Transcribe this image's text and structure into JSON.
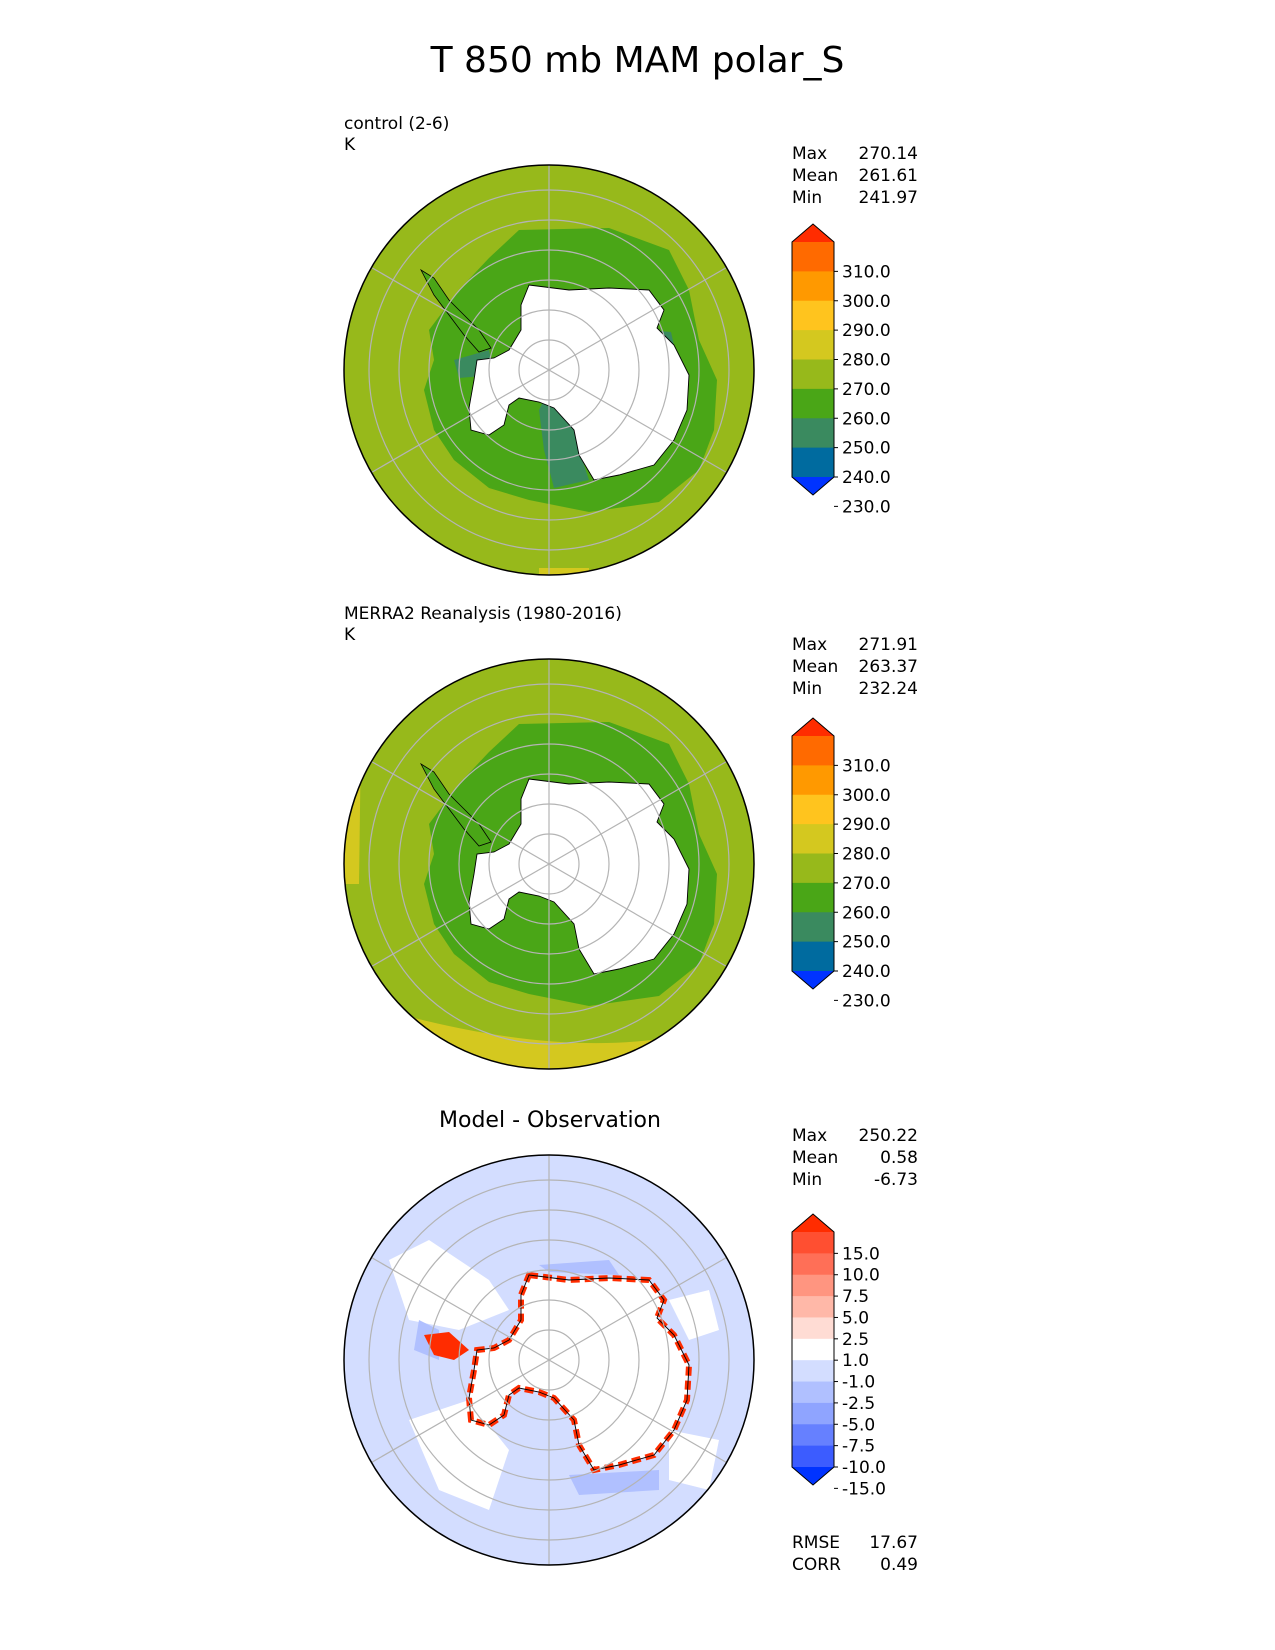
{
  "title": "T 850 mb MAM polar_S",
  "chart_data": [
    {
      "type": "heatmap",
      "projection": "south polar stereographic",
      "subtitle": "control (2-6)",
      "units": "K",
      "stats": [
        {
          "label": "Max",
          "value": "270.14"
        },
        {
          "label": "Mean",
          "value": "261.61"
        },
        {
          "label": "Min",
          "value": "241.97"
        }
      ],
      "colorbar": {
        "ticks": [
          "310.0",
          "300.0",
          "290.0",
          "280.0",
          "270.0",
          "260.0",
          "250.0",
          "240.0",
          "230.0"
        ],
        "colors": [
          "#ff2c00",
          "#ff6a00",
          "#ff9900",
          "#ffc41e",
          "#d4c81f",
          "#97b91b",
          "#4aa617",
          "#3a8a5f",
          "#006b9f",
          "#0033ff"
        ],
        "extend": "both"
      }
    },
    {
      "type": "heatmap",
      "projection": "south polar stereographic",
      "subtitle": "MERRA2 Reanalysis (1980-2016)",
      "units": "K",
      "stats": [
        {
          "label": "Max",
          "value": "271.91"
        },
        {
          "label": "Mean",
          "value": "263.37"
        },
        {
          "label": "Min",
          "value": "232.24"
        }
      ],
      "colorbar": {
        "ticks": [
          "310.0",
          "300.0",
          "290.0",
          "280.0",
          "270.0",
          "260.0",
          "250.0",
          "240.0",
          "230.0"
        ],
        "colors": [
          "#ff2c00",
          "#ff6a00",
          "#ff9900",
          "#ffc41e",
          "#d4c81f",
          "#97b91b",
          "#4aa617",
          "#3a8a5f",
          "#006b9f",
          "#0033ff"
        ],
        "extend": "both"
      }
    },
    {
      "type": "heatmap",
      "projection": "south polar stereographic",
      "title": "Model - Observation",
      "stats": [
        {
          "label": "Max",
          "value": "250.22"
        },
        {
          "label": "Mean",
          "value": "0.58"
        },
        {
          "label": "Min",
          "value": "-6.73"
        }
      ],
      "metrics": [
        {
          "label": "RMSE",
          "value": "17.67"
        },
        {
          "label": "CORR",
          "value": "0.49"
        }
      ],
      "colorbar": {
        "ticks": [
          "15.0",
          "10.0",
          "7.5",
          "5.0",
          "2.5",
          "1.0",
          "-1.0",
          "-2.5",
          "-5.0",
          "-7.5",
          "-10.0",
          "-15.0"
        ],
        "colors": [
          "#ff2c00",
          "#ff4f31",
          "#ff6f57",
          "#ff9580",
          "#ffb8a8",
          "#ffdcd4",
          "#ffffff",
          "#d3ddff",
          "#b0c0ff",
          "#8fa4ff",
          "#6680ff",
          "#3c5cff",
          "#0033ff"
        ],
        "extend": "both"
      }
    }
  ]
}
